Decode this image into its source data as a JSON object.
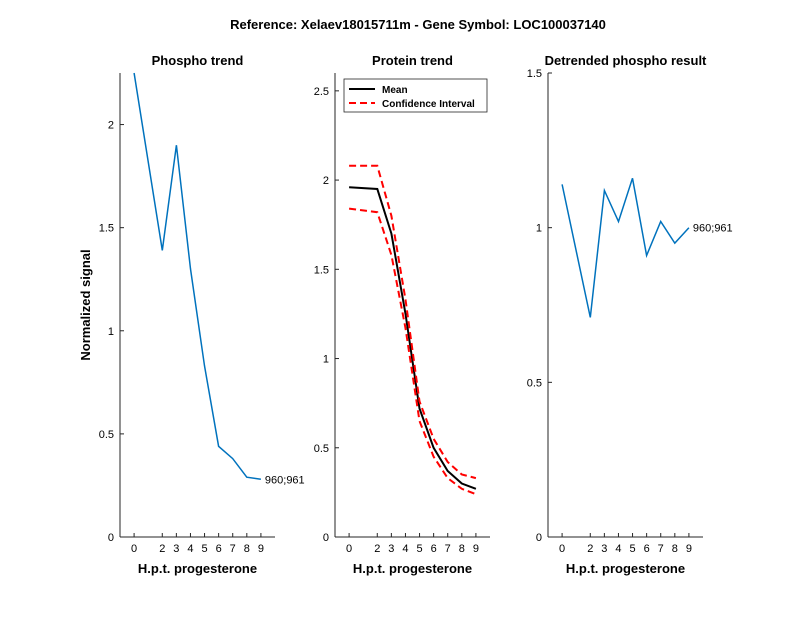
{
  "figure": {
    "suptitle": "Reference:  Xelaev18015711m - Gene Symbol:  LOC100037140"
  },
  "chart_data": [
    {
      "type": "line",
      "title": "Phospho trend",
      "xlabel": "H.p.t. progesterone",
      "ylabel": "Normalized signal",
      "xlim": [
        -1,
        10
      ],
      "ylim": [
        0,
        2.25
      ],
      "xticks": [
        0,
        2,
        3,
        4,
        5,
        6,
        7,
        8,
        9
      ],
      "yticks": [
        0,
        0.5,
        1,
        1.5,
        2
      ],
      "ytick_labels": [
        "0",
        "0.5",
        "1",
        "1.5",
        "2"
      ],
      "x": [
        0,
        2,
        3,
        4,
        5,
        6,
        7,
        8,
        9
      ],
      "series": [
        {
          "values": [
            2.25,
            1.39,
            1.9,
            1.3,
            0.83,
            0.44,
            0.38,
            0.29,
            0.28
          ],
          "color": "#0072bd",
          "style": "solid"
        }
      ],
      "annotation": {
        "text": "960;961",
        "x": 9,
        "y": 0.28
      }
    },
    {
      "type": "line",
      "title": "Protein trend",
      "xlabel": "H.p.t. progesterone",
      "ylabel": "",
      "xlim": [
        -1,
        10
      ],
      "ylim": [
        0,
        2.6
      ],
      "xticks": [
        0,
        2,
        3,
        4,
        5,
        6,
        7,
        8,
        9
      ],
      "yticks": [
        0,
        0.5,
        1,
        1.5,
        2,
        2.5
      ],
      "ytick_labels": [
        "0",
        "0.5",
        "1",
        "1.5",
        "2",
        "2.5"
      ],
      "x": [
        0,
        2,
        3,
        4,
        5,
        6,
        7,
        8,
        9
      ],
      "series": [
        {
          "name": "Mean",
          "values": [
            1.96,
            1.95,
            1.7,
            1.25,
            0.72,
            0.5,
            0.37,
            0.3,
            0.27
          ],
          "color": "#000000",
          "style": "solid"
        },
        {
          "name": "Confidence Interval",
          "values": [
            2.08,
            2.08,
            1.8,
            1.33,
            0.76,
            0.55,
            0.42,
            0.35,
            0.33
          ],
          "color": "#ff0000",
          "style": "dashed"
        },
        {
          "name": "",
          "values": [
            1.84,
            1.82,
            1.58,
            1.17,
            0.65,
            0.45,
            0.33,
            0.27,
            0.24
          ],
          "color": "#ff0000",
          "style": "dashed"
        }
      ],
      "legend": {
        "position": "top-left",
        "entries": [
          {
            "label": "Mean",
            "color": "#000000",
            "style": "solid"
          },
          {
            "label": "Confidence Interval",
            "color": "#ff0000",
            "style": "dashed"
          }
        ]
      }
    },
    {
      "type": "line",
      "title": "Detrended phospho result",
      "xlabel": "H.p.t. progesterone",
      "ylabel": "",
      "xlim": [
        -1,
        10
      ],
      "ylim": [
        0,
        1.5
      ],
      "xticks": [
        0,
        2,
        3,
        4,
        5,
        6,
        7,
        8,
        9
      ],
      "yticks": [
        0,
        0.5,
        1,
        1.5
      ],
      "ytick_labels": [
        "0",
        "0.5",
        "1",
        "1.5"
      ],
      "x": [
        0,
        2,
        3,
        4,
        5,
        6,
        7,
        8,
        9
      ],
      "series": [
        {
          "values": [
            1.14,
            0.71,
            1.12,
            1.02,
            1.16,
            0.91,
            1.02,
            0.95,
            1.0
          ],
          "color": "#0072bd",
          "style": "solid"
        }
      ],
      "annotation": {
        "text": "960;961",
        "x": 9,
        "y": 1.0
      }
    }
  ]
}
